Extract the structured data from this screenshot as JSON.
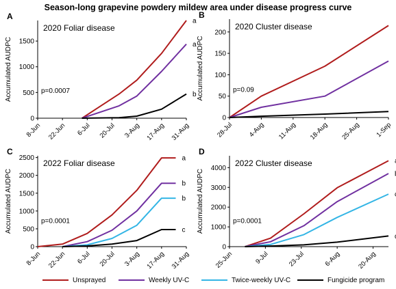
{
  "title": "Season-long grapevine powdery mildew area under disease progress curve",
  "colors": {
    "Unsprayed": "#b01c1c",
    "Weekly UV-C": "#7030a0",
    "Twice-weekly UV-C": "#33b5e5",
    "Fungicide program": "#000000",
    "axis": "#000000"
  },
  "legend": [
    "Unsprayed",
    "Weekly UV-C",
    "Twice-weekly UV-C",
    "Fungicide program"
  ],
  "chart_data": [
    {
      "type": "line",
      "panel": "A",
      "title": "2020 Foliar disease",
      "ylabel": "Accumulated AUDPC",
      "ylim": [
        0,
        1900
      ],
      "yticks": [
        0,
        500,
        1000,
        1500
      ],
      "xlim": [
        "2020-06-08",
        "2020-08-31"
      ],
      "xticks": [
        "8-Jun",
        "22-Jun",
        "6-Jul",
        "20-Jul",
        "3-Aug",
        "17-Aug",
        "31-Aug"
      ],
      "annotation": "p=0.0007",
      "series": [
        {
          "name": "Unsprayed",
          "x": [
            "2020-07-03",
            "2020-07-24",
            "2020-08-03",
            "2020-08-17",
            "2020-08-31"
          ],
          "y": [
            0,
            470,
            740,
            1260,
            1900
          ],
          "letter": "a"
        },
        {
          "name": "Weekly UV-C",
          "x": [
            "2020-07-03",
            "2020-07-24",
            "2020-08-03",
            "2020-08-17",
            "2020-08-31"
          ],
          "y": [
            0,
            240,
            430,
            910,
            1440
          ],
          "letter": "a"
        },
        {
          "name": "Fungicide program",
          "x": [
            "2020-07-03",
            "2020-07-24",
            "2020-08-03",
            "2020-08-17",
            "2020-08-31"
          ],
          "y": [
            0,
            10,
            40,
            175,
            470
          ],
          "letter": "b"
        }
      ]
    },
    {
      "type": "line",
      "panel": "B",
      "title": "2020 Cluster disease",
      "ylabel": "Accumulated AUDPC",
      "ylim": [
        0,
        230
      ],
      "yticks": [
        0,
        50,
        100,
        150,
        200
      ],
      "xlim": [
        "2020-07-28",
        "2020-09-01"
      ],
      "xticks": [
        "28-Jul",
        "4-Aug",
        "11-Aug",
        "18-Aug",
        "25-Aug",
        "1-Sep"
      ],
      "annotation": "p=0.09",
      "series": [
        {
          "name": "Unsprayed",
          "x": [
            "2020-07-28",
            "2020-08-04",
            "2020-08-18",
            "2020-09-01"
          ],
          "y": [
            0,
            50,
            120,
            215
          ]
        },
        {
          "name": "Weekly UV-C",
          "x": [
            "2020-07-28",
            "2020-08-04",
            "2020-08-18",
            "2020-09-01"
          ],
          "y": [
            0,
            24,
            50,
            132
          ]
        },
        {
          "name": "Fungicide program",
          "x": [
            "2020-07-28",
            "2020-08-04",
            "2020-08-18",
            "2020-09-01"
          ],
          "y": [
            0,
            3,
            8,
            14
          ]
        }
      ]
    },
    {
      "type": "line",
      "panel": "C",
      "title": "2022 Foliar disease",
      "ylabel": "Accumulated AUDPC",
      "ylim": [
        0,
        2550
      ],
      "yticks": [
        0,
        500,
        1000,
        1500,
        2000,
        2500
      ],
      "xlim": [
        "2022-06-08",
        "2022-08-31"
      ],
      "xticks": [
        "8-Jun",
        "22-Jun",
        "6-Jul",
        "20-Jul",
        "3-Aug",
        "17-Aug",
        "31-Aug"
      ],
      "annotation": "p=0.0001",
      "series": [
        {
          "name": "Unsprayed",
          "x": [
            "2022-06-08",
            "2022-06-22",
            "2022-07-06",
            "2022-07-20",
            "2022-08-03",
            "2022-08-17",
            "2022-08-25"
          ],
          "y": [
            0,
            70,
            370,
            890,
            1580,
            2490,
            2490
          ],
          "letter": "a"
        },
        {
          "name": "Weekly UV-C",
          "x": [
            "2022-06-22",
            "2022-07-06",
            "2022-07-20",
            "2022-08-03",
            "2022-08-17",
            "2022-08-25"
          ],
          "y": [
            0,
            140,
            460,
            1000,
            1780,
            1780
          ],
          "letter": "b"
        },
        {
          "name": "Twice-weekly UV-C",
          "x": [
            "2022-06-22",
            "2022-07-06",
            "2022-07-20",
            "2022-08-03",
            "2022-08-17",
            "2022-08-25"
          ],
          "y": [
            0,
            50,
            230,
            600,
            1360,
            1360
          ],
          "letter": "b"
        },
        {
          "name": "Fungicide program",
          "x": [
            "2022-06-22",
            "2022-07-06",
            "2022-07-20",
            "2022-08-03",
            "2022-08-17",
            "2022-08-25"
          ],
          "y": [
            0,
            20,
            70,
            170,
            480,
            480
          ],
          "letter": "c"
        }
      ]
    },
    {
      "type": "line",
      "panel": "D",
      "title": "2022 Cluster disease",
      "ylabel": "Accumulated AUDPC",
      "ylim": [
        0,
        4600
      ],
      "yticks": [
        0,
        1000,
        2000,
        3000,
        4000
      ],
      "xlim": [
        "2022-06-25",
        "2022-08-26"
      ],
      "xticks": [
        "25-Jun",
        "9-Jul",
        "23-Jul",
        "6-Aug",
        "20-Aug"
      ],
      "annotation": "p=0.0001",
      "series": [
        {
          "name": "Unsprayed",
          "x": [
            "2022-07-01",
            "2022-07-11",
            "2022-07-24",
            "2022-08-06",
            "2022-08-26"
          ],
          "y": [
            0,
            430,
            1660,
            2980,
            4350
          ],
          "letter": "a"
        },
        {
          "name": "Weekly UV-C",
          "x": [
            "2022-07-01",
            "2022-07-11",
            "2022-07-24",
            "2022-08-06",
            "2022-08-26"
          ],
          "y": [
            0,
            250,
            1060,
            2280,
            3700
          ],
          "letter": "b"
        },
        {
          "name": "Twice-weekly UV-C",
          "x": [
            "2022-07-01",
            "2022-07-11",
            "2022-07-24",
            "2022-08-06",
            "2022-08-26"
          ],
          "y": [
            0,
            110,
            610,
            1480,
            2660
          ],
          "letter": "c"
        },
        {
          "name": "Fungicide program",
          "x": [
            "2022-07-01",
            "2022-07-11",
            "2022-07-24",
            "2022-08-06",
            "2022-08-26"
          ],
          "y": [
            0,
            30,
            90,
            230,
            540
          ],
          "letter": "d"
        }
      ]
    }
  ]
}
